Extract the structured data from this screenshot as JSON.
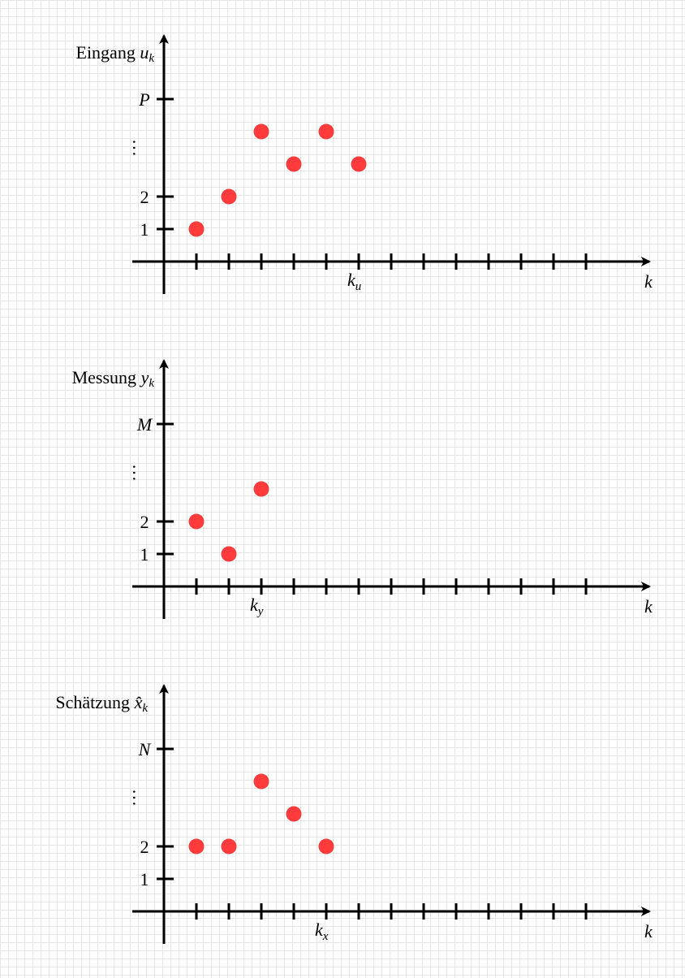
{
  "colors": {
    "point": "#ff3b3b",
    "axis": "#000000",
    "grid": "#e6e6e6"
  },
  "panels": [
    {
      "id": "input",
      "title": {
        "word": "Eingang",
        "symbol": "u",
        "subscript": "k"
      },
      "x_axis_label": "k",
      "x_marker": {
        "symbol": "k",
        "subscript": "u",
        "at": 6
      },
      "y_ticks": [
        "1",
        "2",
        "⋮",
        "P"
      ],
      "points": [
        [
          1,
          1
        ],
        [
          2,
          2
        ],
        [
          3,
          4
        ],
        [
          4,
          3
        ],
        [
          5,
          4
        ],
        [
          6,
          3
        ]
      ]
    },
    {
      "id": "measurement",
      "title": {
        "word": "Messung",
        "symbol": "y",
        "subscript": "k"
      },
      "x_axis_label": "k",
      "x_marker": {
        "symbol": "k",
        "subscript": "y",
        "at": 3
      },
      "y_ticks": [
        "1",
        "2",
        "⋮",
        "M"
      ],
      "points": [
        [
          1,
          2
        ],
        [
          2,
          1
        ],
        [
          3,
          3
        ]
      ]
    },
    {
      "id": "estimate",
      "title": {
        "word": "Schätzung",
        "symbol": "x̂",
        "subscript": "k"
      },
      "x_axis_label": "k",
      "x_marker": {
        "symbol": "k",
        "subscript": "x",
        "at": 5
      },
      "y_ticks": [
        "1",
        "2",
        "⋮",
        "N"
      ],
      "points": [
        [
          1,
          2
        ],
        [
          2,
          2
        ],
        [
          3,
          4
        ],
        [
          4,
          3
        ],
        [
          5,
          2
        ]
      ]
    }
  ]
}
